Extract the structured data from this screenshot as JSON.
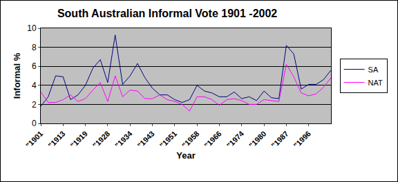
{
  "chart_data": {
    "type": "line",
    "title": "South Australian Informal Vote 1901 -2002",
    "x_label": "Year",
    "y_label": "Informal %",
    "categories": [
      "\"1901",
      null,
      null,
      "\"1913",
      null,
      null,
      "\"1919",
      null,
      null,
      "\"1928",
      null,
      null,
      "\"1934",
      null,
      null,
      "\"1943",
      null,
      null,
      "\"1951",
      null,
      null,
      "\"1958",
      null,
      null,
      "\"1966",
      null,
      null,
      "\"1974",
      null,
      null,
      "\"1980",
      null,
      null,
      "\"1987",
      null,
      null,
      "\"1996",
      null,
      null,
      null
    ],
    "series": [
      {
        "name": "SA",
        "color": "#000080",
        "values": [
          1.8,
          2.8,
          5.0,
          4.9,
          2.5,
          3.0,
          4.0,
          5.8,
          6.7,
          4.3,
          9.3,
          4.1,
          5.0,
          6.3,
          4.8,
          3.7,
          3.0,
          3.0,
          2.5,
          2.2,
          2.5,
          4.0,
          3.4,
          3.2,
          2.8,
          2.8,
          3.3,
          2.6,
          2.8,
          2.4,
          3.4,
          2.7,
          2.6,
          8.2,
          7.3,
          3.6,
          4.1,
          4.1,
          4.6,
          5.6
        ]
      },
      {
        "name": "NAT",
        "color": "#ff00ff",
        "values": [
          3.3,
          2.2,
          2.2,
          2.5,
          3.0,
          2.3,
          2.6,
          3.5,
          4.3,
          2.3,
          5.0,
          2.8,
          3.5,
          3.4,
          2.6,
          2.6,
          3.0,
          2.5,
          2.3,
          2.0,
          1.3,
          2.8,
          2.8,
          2.5,
          1.9,
          2.5,
          2.6,
          2.4,
          2.0,
          2.0,
          2.5,
          2.4,
          2.3,
          6.2,
          4.9,
          3.2,
          2.9,
          3.1,
          3.8,
          4.8
        ]
      }
    ],
    "ylim": [
      0,
      10
    ],
    "yticks": [
      0,
      2,
      4,
      6,
      8,
      10
    ],
    "grid": true,
    "legend": "right"
  }
}
